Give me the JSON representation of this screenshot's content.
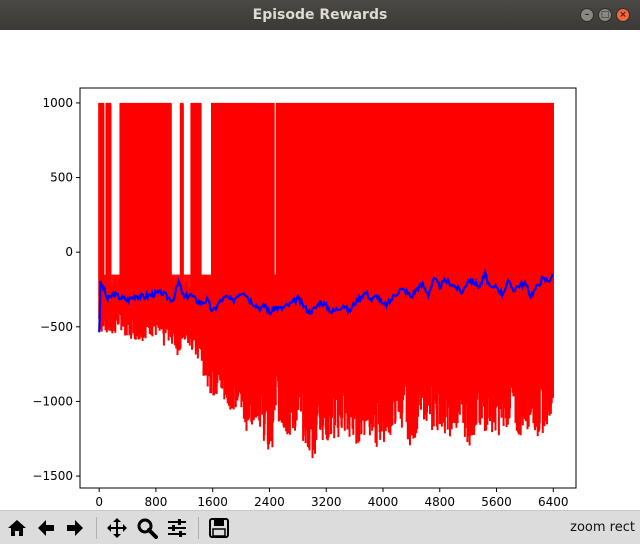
{
  "window": {
    "title": "Episode Rewards"
  },
  "toolbar": {
    "buttons": [
      {
        "icon": "home-icon"
      },
      {
        "icon": "back-arrow-icon"
      },
      {
        "icon": "forward-arrow-icon"
      },
      {
        "icon": "pan-icon"
      },
      {
        "icon": "zoom-icon"
      },
      {
        "icon": "subplots-config-icon"
      },
      {
        "icon": "save-icon"
      }
    ],
    "status": "zoom rect"
  },
  "chart_data": {
    "type": "line",
    "title": "",
    "xlabel": "",
    "ylabel": "",
    "xlim": [
      -270,
      6720
    ],
    "ylim": [
      -1580,
      1100
    ],
    "xticks": [
      0,
      800,
      1600,
      2400,
      3200,
      4000,
      4800,
      5600,
      6400
    ],
    "xtick_labels": [
      "0",
      "800",
      "1600",
      "2400",
      "3200",
      "4000",
      "4800",
      "5600",
      "6400"
    ],
    "yticks": [
      -1500,
      -1000,
      -500,
      0,
      500,
      1000
    ],
    "ytick_labels": [
      "−1500",
      "−1000",
      "−500",
      "0",
      "500",
      "1000"
    ],
    "grid": false,
    "series": [
      {
        "color": "#ff0000",
        "style": "raw episode reward (dense oscillation)",
        "x": [
          0,
          100,
          200,
          300,
          400,
          500,
          600,
          700,
          800,
          900,
          1000,
          1100,
          1200,
          1300,
          1400,
          1500,
          1600,
          1700,
          1800,
          1900,
          2000,
          2100,
          2200,
          2300,
          2400,
          2500,
          2600,
          2700,
          2800,
          2900,
          3000,
          3100,
          3200,
          3300,
          3400,
          3500,
          3600,
          3700,
          3800,
          3900,
          4000,
          4100,
          4200,
          4300,
          4400,
          4500,
          4600,
          4700,
          4800,
          4900,
          5000,
          5100,
          5200,
          5300,
          5400,
          5500,
          5600,
          5700,
          5800,
          5900,
          6000,
          6100,
          6200,
          6300,
          6400
        ],
        "upper": [
          1000,
          1000,
          1000,
          1000,
          1000,
          1000,
          1000,
          1000,
          1000,
          1000,
          1000,
          1000,
          1000,
          1000,
          1000,
          1000,
          1000,
          1000,
          1000,
          1000,
          1000,
          1000,
          1000,
          1000,
          1000,
          1000,
          1000,
          1000,
          1000,
          1000,
          1000,
          1000,
          1000,
          1000,
          1000,
          1000,
          1000,
          1000,
          1000,
          1000,
          1000,
          1000,
          1000,
          1000,
          1000,
          1000,
          1000,
          1000,
          1000,
          1000,
          1000,
          1000,
          1000,
          1000,
          1000,
          1000,
          1000,
          1000,
          1000,
          1000,
          1000,
          1000,
          1000,
          1000,
          1000
        ],
        "lower": [
          -540,
          -560,
          -560,
          -520,
          -580,
          -590,
          -600,
          -560,
          -580,
          -650,
          -590,
          -700,
          -600,
          -670,
          -730,
          -870,
          -990,
          -980,
          -1050,
          -1060,
          -1100,
          -1230,
          -1100,
          -1220,
          -1450,
          -1110,
          -1240,
          -1260,
          -1200,
          -1290,
          -1440,
          -1230,
          -1290,
          -1300,
          -1230,
          -1270,
          -1310,
          -1260,
          -1220,
          -1340,
          -1280,
          -1240,
          -1150,
          -1200,
          -1320,
          -1180,
          -1120,
          -1240,
          -1180,
          -1230,
          -1260,
          -1150,
          -1320,
          -1240,
          -1260,
          -1180,
          -1250,
          -1200,
          -1150,
          -1260,
          -1200,
          -1170,
          -1280,
          -1170,
          -1040
        ]
      },
      {
        "color": "#0000ff",
        "style": "moving average",
        "x": [
          0,
          20,
          60,
          120,
          200,
          280,
          400,
          520,
          640,
          760,
          880,
          960,
          1040,
          1120,
          1200,
          1280,
          1360,
          1440,
          1520,
          1600,
          1660,
          1720,
          1800,
          1880,
          1960,
          2040,
          2120,
          2200,
          2280,
          2340,
          2400,
          2480,
          2560,
          2640,
          2720,
          2800,
          2880,
          2960,
          3040,
          3120,
          3200,
          3280,
          3360,
          3440,
          3520,
          3600,
          3680,
          3760,
          3840,
          3920,
          4000,
          4080,
          4160,
          4240,
          4320,
          4400,
          4480,
          4560,
          4640,
          4720,
          4800,
          4880,
          4960,
          5040,
          5120,
          5200,
          5280,
          5360,
          5440,
          5520,
          5600,
          5680,
          5760,
          5840,
          5920,
          6000,
          6080,
          6160,
          6240,
          6320,
          6400
        ],
        "y": [
          -530,
          -210,
          -240,
          -320,
          -280,
          -300,
          -320,
          -290,
          -300,
          -280,
          -270,
          -300,
          -320,
          -200,
          -310,
          -280,
          -320,
          -340,
          -320,
          -400,
          -360,
          -320,
          -300,
          -330,
          -280,
          -260,
          -320,
          -350,
          -380,
          -350,
          -410,
          -370,
          -380,
          -360,
          -340,
          -310,
          -360,
          -400,
          -380,
          -330,
          -360,
          -400,
          -380,
          -350,
          -400,
          -340,
          -300,
          -270,
          -320,
          -290,
          -360,
          -340,
          -290,
          -250,
          -260,
          -300,
          -240,
          -220,
          -280,
          -180,
          -230,
          -190,
          -210,
          -240,
          -270,
          -180,
          -200,
          -230,
          -150,
          -250,
          -230,
          -280,
          -200,
          -250,
          -220,
          -210,
          -290,
          -240,
          -180,
          -190,
          -160
        ]
      }
    ]
  }
}
